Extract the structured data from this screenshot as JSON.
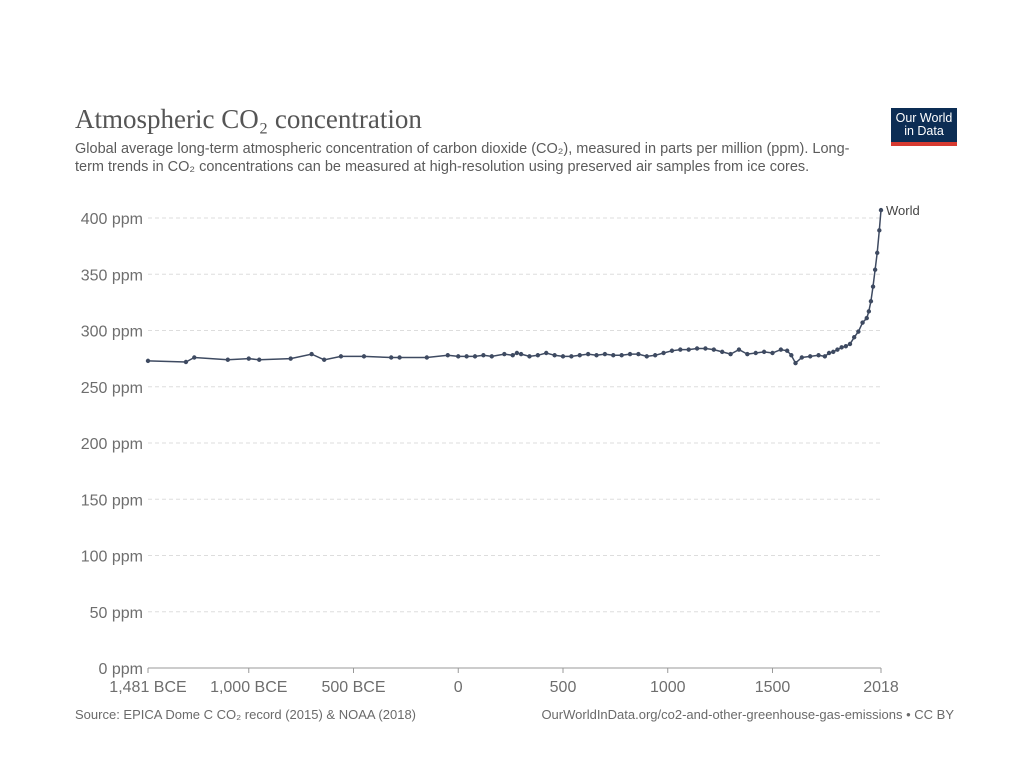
{
  "header": {
    "title": "Atmospheric CO₂ concentration",
    "subtitle": "Global average long-term atmospheric concentration of carbon dioxide (CO₂), measured in parts per million (ppm). Long-term trends in CO₂ concentrations can be measured at high-resolution using preserved air samples from ice cores."
  },
  "logo": {
    "line1": "Our World",
    "line2": "in Data"
  },
  "footer": {
    "source": "Source: EPICA Dome C CO₂ record (2015) & NOAA (2018)",
    "credit": "OurWorldInData.org/co2-and-other-greenhouse-gas-emissions • CC BY"
  },
  "colors": {
    "series": "#3e4a61",
    "grid": "#dddddd",
    "logo_bg": "#0c2d54",
    "logo_accent": "#d73a30"
  },
  "chart_data": {
    "type": "line",
    "title": "Atmospheric CO₂ concentration",
    "xlabel": "",
    "ylabel": "",
    "xlim": [
      -1481,
      2018
    ],
    "ylim": [
      0,
      400
    ],
    "y_ticks": [
      {
        "value": 0,
        "label": "0 ppm"
      },
      {
        "value": 50,
        "label": "50 ppm"
      },
      {
        "value": 100,
        "label": "100 ppm"
      },
      {
        "value": 150,
        "label": "150 ppm"
      },
      {
        "value": 200,
        "label": "200 ppm"
      },
      {
        "value": 250,
        "label": "250 ppm"
      },
      {
        "value": 300,
        "label": "300 ppm"
      },
      {
        "value": 350,
        "label": "350 ppm"
      },
      {
        "value": 400,
        "label": "400 ppm"
      }
    ],
    "x_ticks": [
      {
        "value": -1481,
        "label": "1,481 BCE"
      },
      {
        "value": -1000,
        "label": "1,000 BCE"
      },
      {
        "value": -500,
        "label": "500 BCE"
      },
      {
        "value": 0,
        "label": "0"
      },
      {
        "value": 500,
        "label": "500"
      },
      {
        "value": 1000,
        "label": "1000"
      },
      {
        "value": 1500,
        "label": "1500"
      },
      {
        "value": 2018,
        "label": "2018"
      }
    ],
    "series": [
      {
        "name": "World",
        "x": [
          -1481,
          -1300,
          -1260,
          -1100,
          -1000,
          -950,
          -800,
          -700,
          -640,
          -560,
          -450,
          -320,
          -280,
          -150,
          -50,
          0,
          40,
          80,
          120,
          160,
          220,
          260,
          280,
          300,
          340,
          380,
          420,
          460,
          500,
          540,
          580,
          620,
          660,
          700,
          740,
          780,
          820,
          860,
          900,
          940,
          980,
          1020,
          1060,
          1100,
          1140,
          1180,
          1220,
          1260,
          1300,
          1340,
          1380,
          1420,
          1460,
          1500,
          1540,
          1570,
          1590,
          1610,
          1640,
          1680,
          1720,
          1750,
          1770,
          1790,
          1810,
          1830,
          1850,
          1870,
          1890,
          1910,
          1930,
          1950,
          1960,
          1970,
          1980,
          1990,
          2000,
          2010,
          2018
        ],
        "values": [
          273,
          272,
          276,
          274,
          275,
          274,
          275,
          279,
          274,
          277,
          277,
          276,
          276,
          276,
          278,
          277,
          277,
          277,
          278,
          277,
          279,
          278,
          280,
          279,
          277,
          278,
          280,
          278,
          277,
          277,
          278,
          279,
          278,
          279,
          278,
          278,
          279,
          279,
          277,
          278,
          280,
          282,
          283,
          283,
          284,
          284,
          283,
          281,
          279,
          283,
          279,
          280,
          281,
          280,
          283,
          282,
          278,
          271,
          276,
          277,
          278,
          277,
          280,
          281,
          283,
          285,
          286,
          288,
          294,
          299,
          307,
          311,
          317,
          326,
          339,
          354,
          369,
          389,
          407
        ]
      }
    ]
  }
}
